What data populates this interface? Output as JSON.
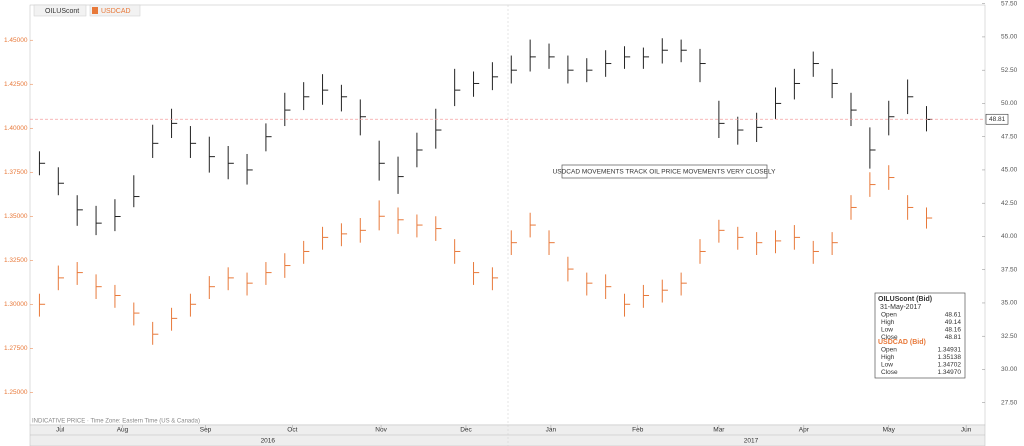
{
  "chart_data": {
    "type": "ohlc",
    "tabs": [
      "OILUScont",
      "USDCAD"
    ],
    "annotation": "USDCAD MOVEMENTS TRACK OIL PRICE MOVEMENTS VERY CLOSELY",
    "footer": "INDICATIVE PRICE · Time Zone: Eastern Time (US & Canada)",
    "xlim": [
      0,
      50.6
    ],
    "xticks": [
      {
        "value": 1.6,
        "label": "Jul"
      },
      {
        "value": 4.9,
        "label": "Aug"
      },
      {
        "value": 9.3,
        "label": "Sep"
      },
      {
        "value": 13.9,
        "label": "Oct"
      },
      {
        "value": 18.6,
        "label": "Nov"
      },
      {
        "value": 23.1,
        "label": "Dec"
      },
      {
        "value": 27.6,
        "label": "Jan"
      },
      {
        "value": 32.2,
        "label": "Feb"
      },
      {
        "value": 36.5,
        "label": "Mar"
      },
      {
        "value": 41,
        "label": "Apr"
      },
      {
        "value": 45.5,
        "label": "May"
      },
      {
        "value": 49.6,
        "label": "Jun"
      }
    ],
    "years": [
      {
        "value": 12.6,
        "label": "2016"
      },
      {
        "value": 38.2,
        "label": "2017"
      }
    ],
    "ylim": [
      1.232,
      1.47
    ],
    "yticks": [
      {
        "value": 1.25,
        "label": "1.25000"
      },
      {
        "value": 1.275,
        "label": "1.27500"
      },
      {
        "value": 1.3,
        "label": "1.30000"
      },
      {
        "value": 1.325,
        "label": "1.32500"
      },
      {
        "value": 1.35,
        "label": "1.35000"
      },
      {
        "value": 1.375,
        "label": "1.37500"
      },
      {
        "value": 1.4,
        "label": "1.40000"
      },
      {
        "value": 1.425,
        "label": "1.42500"
      },
      {
        "value": 1.45,
        "label": "1.45000"
      }
    ],
    "y2lim": [
      25.9,
      57.4
    ],
    "y2ticks": [
      {
        "value": 27.5,
        "label": "27.50"
      },
      {
        "value": 30,
        "label": "30.00"
      },
      {
        "value": 32.5,
        "label": "32.50"
      },
      {
        "value": 35,
        "label": "35.00"
      },
      {
        "value": 37.5,
        "label": "37.50"
      },
      {
        "value": 40,
        "label": "40.00"
      },
      {
        "value": 42.5,
        "label": "42.50"
      },
      {
        "value": 45,
        "label": "45.00"
      },
      {
        "value": 47.5,
        "label": "47.50"
      },
      {
        "value": 50,
        "label": "50.00"
      },
      {
        "value": 52.5,
        "label": "52.50"
      },
      {
        "value": 55,
        "label": "55.00"
      },
      {
        "value": 57.5,
        "label": "57.50"
      }
    ],
    "series": [
      {
        "name": "OILUScont",
        "color": "#222222",
        "axis": "y2",
        "values": [
          45.5,
          44,
          42,
          41,
          41.5,
          43,
          47,
          48.5,
          47,
          46,
          45.5,
          45,
          47.5,
          49.5,
          50.5,
          51,
          50.5,
          49,
          45.5,
          44.5,
          46.5,
          48,
          51,
          51.5,
          52,
          52.5,
          53.5,
          53.5,
          52.5,
          52.5,
          53,
          53.5,
          53.5,
          54,
          54,
          53,
          48.5,
          48,
          48.2,
          50,
          51.5,
          53,
          51.5,
          49.5,
          46.5,
          49,
          50.5,
          48.8
        ],
        "high": [
          46.4,
          45.2,
          43.1,
          42.3,
          42.8,
          44.6,
          48.4,
          49.6,
          48.3,
          47.5,
          46.8,
          46.2,
          48.5,
          50.8,
          51.6,
          52.2,
          51.4,
          50.3,
          47.2,
          46,
          47.8,
          49.6,
          52.6,
          52.4,
          53.1,
          53.6,
          54.8,
          54.5,
          53.6,
          53.4,
          54,
          54.3,
          54.2,
          54.9,
          54.8,
          54.1,
          50.2,
          49,
          49.3,
          51.2,
          52.6,
          53.9,
          52.6,
          50.8,
          48.2,
          50.2,
          51.8,
          49.8
        ],
        "low": [
          44.6,
          43.1,
          40.8,
          40.1,
          40.4,
          42.2,
          45.9,
          47.4,
          45.9,
          44.8,
          44.3,
          43.9,
          46.4,
          48.3,
          49.5,
          49.9,
          49.4,
          47.6,
          44.2,
          43.2,
          45.2,
          46.6,
          49.8,
          50.5,
          51,
          51.5,
          52.4,
          52.6,
          51.5,
          51.6,
          52,
          52.6,
          52.6,
          53,
          53.1,
          51.6,
          47.4,
          46.9,
          47.1,
          48.8,
          50.3,
          52,
          50.4,
          48.3,
          45.1,
          47.6,
          49.2,
          47.9
        ]
      },
      {
        "name": "USDCAD",
        "color": "#e8793a",
        "values": [
          1.3,
          1.315,
          1.318,
          1.31,
          1.305,
          1.295,
          1.283,
          1.292,
          1.3,
          1.31,
          1.315,
          1.312,
          1.318,
          1.322,
          1.33,
          1.338,
          1.34,
          1.342,
          1.35,
          1.348,
          1.345,
          1.343,
          1.33,
          1.318,
          1.315,
          1.335,
          1.345,
          1.335,
          1.32,
          1.312,
          1.31,
          1.3,
          1.305,
          1.308,
          1.312,
          1.33,
          1.342,
          1.338,
          1.335,
          1.336,
          1.338,
          1.33,
          1.335,
          1.355,
          1.368,
          1.372,
          1.355,
          1.349
        ],
        "high": [
          1.306,
          1.322,
          1.324,
          1.317,
          1.311,
          1.301,
          1.29,
          1.298,
          1.306,
          1.316,
          1.321,
          1.318,
          1.324,
          1.329,
          1.336,
          1.344,
          1.346,
          1.349,
          1.359,
          1.355,
          1.351,
          1.35,
          1.337,
          1.324,
          1.321,
          1.342,
          1.352,
          1.342,
          1.327,
          1.318,
          1.317,
          1.306,
          1.311,
          1.314,
          1.318,
          1.337,
          1.348,
          1.344,
          1.341,
          1.342,
          1.345,
          1.336,
          1.341,
          1.362,
          1.375,
          1.379,
          1.362,
          1.355
        ],
        "low": [
          1.293,
          1.308,
          1.311,
          1.303,
          1.298,
          1.288,
          1.277,
          1.285,
          1.293,
          1.303,
          1.308,
          1.305,
          1.311,
          1.315,
          1.323,
          1.331,
          1.333,
          1.335,
          1.342,
          1.34,
          1.338,
          1.336,
          1.323,
          1.311,
          1.308,
          1.328,
          1.338,
          1.328,
          1.313,
          1.305,
          1.303,
          1.293,
          1.298,
          1.301,
          1.305,
          1.323,
          1.335,
          1.331,
          1.328,
          1.329,
          1.331,
          1.323,
          1.328,
          1.348,
          1.361,
          1.365,
          1.348,
          1.343
        ]
      }
    ],
    "info": [
      {
        "title": "OILUScont (Bid)",
        "date": "31-May-2017",
        "rows": [
          [
            "Open",
            "48.61"
          ],
          [
            "High",
            "49.14"
          ],
          [
            "Low",
            "48.16"
          ],
          [
            "Close",
            "48.81"
          ]
        ]
      },
      {
        "title": "USDCAD (Bid)",
        "rows": [
          [
            "Open",
            "1.34931"
          ],
          [
            "High",
            "1.35138"
          ],
          [
            "Low",
            "1.34702"
          ],
          [
            "Close",
            "1.34970"
          ]
        ]
      }
    ]
  }
}
